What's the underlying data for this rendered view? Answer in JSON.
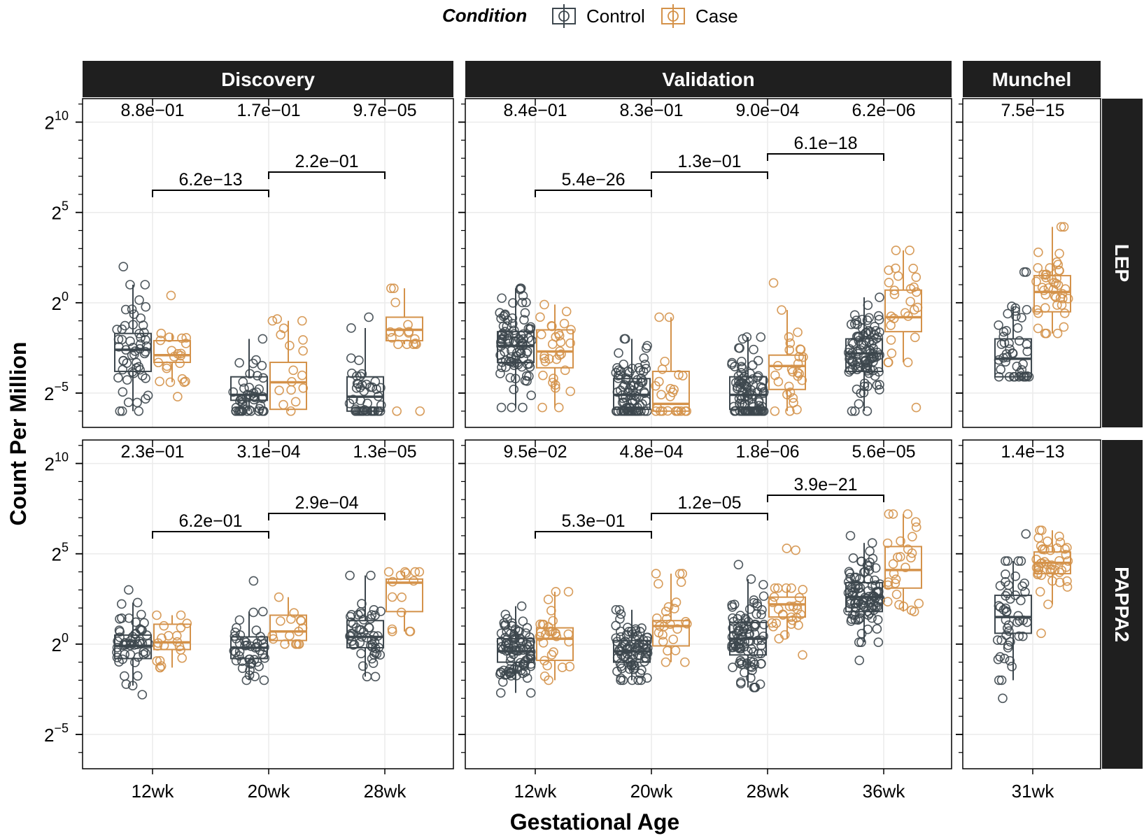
{
  "chart_data": {
    "type": "boxplot",
    "legend": {
      "title": "Condition",
      "position": "top",
      "entries": [
        {
          "name": "Control",
          "color": "#3d474e"
        },
        {
          "name": "Case",
          "color": "#d4924a"
        }
      ]
    },
    "xlabel": "Gestational Age",
    "ylabel": "Count Per Million",
    "y_scale": "log2",
    "y_range_log2": [
      -6.9,
      11.3
    ],
    "y_ticks": [
      {
        "exp": 0,
        "base": "2",
        "sup": "0"
      },
      {
        "exp": 5,
        "base": "2",
        "sup": "5"
      },
      {
        "exp": 10,
        "base": "2",
        "sup": "10"
      },
      {
        "exp": -5,
        "base": "2",
        "sup": "−5"
      }
    ],
    "column_facets": [
      {
        "name": "Discovery",
        "categories": [
          "12wk",
          "20wk",
          "28wk"
        ]
      },
      {
        "name": "Validation",
        "categories": [
          "12wk",
          "20wk",
          "28wk",
          "36wk"
        ]
      },
      {
        "name": "Munchel",
        "categories": [
          "31wk"
        ]
      }
    ],
    "row_facets": [
      "LEP",
      "PAPPA2"
    ],
    "panels": [
      {
        "row": "LEP",
        "col": "Discovery",
        "group_pvalues": [
          "8.8e−01",
          "1.7e−01",
          "9.7e−05"
        ],
        "comparisons": [
          {
            "from": 0,
            "to": 1,
            "label": "6.2e−13",
            "level": 0
          },
          {
            "from": 1,
            "to": 2,
            "label": "2.2e−01",
            "level": 1
          }
        ],
        "boxes": [
          {
            "x": "12wk",
            "group": "Control",
            "q1": -3.8,
            "median": -2.6,
            "q3": -1.7,
            "lo": -6.0,
            "hi": 1.0,
            "n": 48,
            "outliers": [
              -6.0,
              -6.0,
              1.0,
              2.0
            ]
          },
          {
            "x": "12wk",
            "group": "Case",
            "q1": -3.3,
            "median -2.9": -2.9,
            "median": -2.9,
            "q3": -2.1,
            "lo": -4.4,
            "hi": -1.7,
            "n": 18,
            "outliers": [
              0.4,
              -5.2
            ]
          },
          {
            "x": "20wk",
            "group": "Control",
            "q1": -5.4,
            "median": -5.1,
            "q3": -4.1,
            "lo": -6.0,
            "hi": -2.0,
            "n": 42,
            "outliers": [
              -6.0,
              -6.0,
              -6.0
            ]
          },
          {
            "x": "20wk",
            "group": "Case",
            "q1": -5.9,
            "median": -4.4,
            "q3": -3.3,
            "lo": -6.0,
            "hi": -1.0,
            "n": 14,
            "outliers": [
              -0.9
            ]
          },
          {
            "x": "28wk",
            "group": "Control",
            "q1": -6.0,
            "median": -5.2,
            "q3": -4.1,
            "lo": -6.0,
            "hi": -1.4,
            "n": 40,
            "outliers": [
              -6.0,
              -6.0,
              -0.8
            ]
          },
          {
            "x": "28wk",
            "group": "Case",
            "q1": -2.1,
            "median": -1.5,
            "q3": -0.8,
            "lo": -2.3,
            "hi": 0.8,
            "n": 12,
            "outliers": [
              -6.0,
              -6.0,
              0.8
            ]
          }
        ]
      },
      {
        "row": "LEP",
        "col": "Validation",
        "group_pvalues": [
          "8.4e−01",
          "8.3e−01",
          "9.0e−04",
          "6.2e−06"
        ],
        "comparisons": [
          {
            "from": 0,
            "to": 1,
            "label": "5.4e−26",
            "level": 0
          },
          {
            "from": 1,
            "to": 2,
            "label": "1.3e−01",
            "level": 1
          },
          {
            "from": 2,
            "to": 3,
            "label": "6.1e−18",
            "level": 2
          }
        ],
        "boxes": [
          {
            "x": "12wk",
            "group": "Control",
            "q1": -3.3,
            "median": -2.4,
            "q3": -1.6,
            "lo": -5.8,
            "hi": 0.8,
            "n": 90,
            "outliers": [
              -5.8,
              -5.8
            ]
          },
          {
            "x": "12wk",
            "group": "Case",
            "q1": -3.6,
            "median": -2.7,
            "q3": -1.5,
            "lo": -5.8,
            "hi": -0.1,
            "n": 28,
            "outliers": [
              -5.8
            ]
          },
          {
            "x": "20wk",
            "group": "Control",
            "q1": -5.9,
            "median": -5.1,
            "q3": -4.2,
            "lo": -6.0,
            "hi": -2.0,
            "n": 80,
            "outliers": [
              -6.0,
              -6.0,
              -6.0
            ]
          },
          {
            "x": "20wk",
            "group": "Case",
            "q1": -6.0,
            "median": -5.6,
            "q3": -3.8,
            "lo": -6.0,
            "hi": -0.8,
            "n": 22,
            "outliers": [
              -0.8
            ]
          },
          {
            "x": "28wk",
            "group": "Control",
            "q1": -5.9,
            "median": -5.1,
            "q3": -4.1,
            "lo": -6.0,
            "hi": -1.9,
            "n": 90,
            "outliers": [
              -6.0,
              -6.0,
              -6.0,
              -2.0
            ]
          },
          {
            "x": "28wk",
            "group": "Case",
            "q1": -4.8,
            "median": -3.5,
            "q3": -2.9,
            "lo": -6.0,
            "hi": -0.4,
            "n": 24,
            "outliers": [
              1.1,
              -6.0
            ]
          },
          {
            "x": "36wk",
            "group": "Control",
            "q1": -3.8,
            "median": -2.8,
            "q3": -2.0,
            "lo": -6.0,
            "hi": 0.3,
            "n": 95,
            "outliers": [
              -6.0,
              -6.0
            ]
          },
          {
            "x": "36wk",
            "group": "Case",
            "q1": -1.6,
            "median": -0.8,
            "q3": 0.7,
            "lo": -3.3,
            "hi": 2.9,
            "n": 24,
            "outliers": [
              -5.8,
              2.9
            ]
          }
        ]
      },
      {
        "row": "LEP",
        "col": "Munchel",
        "group_pvalues": [
          "7.5e−15"
        ],
        "comparisons": [],
        "boxes": [
          {
            "x": "31wk",
            "group": "Control",
            "q1": -4.1,
            "median": -3.1,
            "q3": -2.0,
            "lo": -4.1,
            "hi": -0.2,
            "n": 40,
            "outliers": [
              1.7,
              1.7
            ]
          },
          {
            "x": "31wk",
            "group": "Case",
            "q1": -0.5,
            "median": 0.6,
            "q3": 1.5,
            "lo": -1.7,
            "hi": 4.2,
            "n": 40,
            "outliers": [
              4.2
            ]
          }
        ]
      },
      {
        "row": "PAPPA2",
        "col": "Discovery",
        "group_pvalues": [
          "2.3e−01",
          "3.1e−04",
          "1.3e−05"
        ],
        "comparisons": [
          {
            "from": 0,
            "to": 1,
            "label": "6.2e−01",
            "level": 0
          },
          {
            "from": 1,
            "to": 2,
            "label": "2.9e−04",
            "level": 1
          }
        ],
        "boxes": [
          {
            "x": "12wk",
            "group": "Control",
            "q1": -0.8,
            "median": -0.1,
            "q3": 0.5,
            "lo": -2.3,
            "hi": 2.3,
            "n": 48,
            "outliers": [
              -2.8,
              3.0
            ]
          },
          {
            "x": "12wk",
            "group": "Case",
            "q1": -0.3,
            "median": 0.1,
            "q3": 1.1,
            "lo": -1.3,
            "hi": 1.6,
            "n": 18,
            "outliers": []
          },
          {
            "x": "20wk",
            "group": "Control",
            "q1": -0.8,
            "median": -0.2,
            "q3": 0.4,
            "lo": -2.0,
            "hi": 1.8,
            "n": 42,
            "outliers": [
              3.5
            ]
          },
          {
            "x": "20wk",
            "group": "Case",
            "q1": 0.2,
            "median": 0.7,
            "q3": 1.6,
            "lo": 0.0,
            "hi": 2.6,
            "n": 14,
            "outliers": []
          },
          {
            "x": "28wk",
            "group": "Control",
            "q1": -0.2,
            "median": 0.4,
            "q3": 1.3,
            "lo": -1.8,
            "hi": 3.8,
            "n": 48,
            "outliers": [
              3.8
            ]
          },
          {
            "x": "28wk",
            "group": "Case",
            "q1": 1.8,
            "median": 3.4,
            "q3": 3.6,
            "lo": 0.7,
            "hi": 4.0,
            "n": 12,
            "outliers": [
              0.7
            ]
          }
        ]
      },
      {
        "row": "PAPPA2",
        "col": "Validation",
        "group_pvalues": [
          "9.5e−02",
          "4.8e−04",
          "1.8e−06",
          "5.6e−05"
        ],
        "comparisons": [
          {
            "from": 0,
            "to": 1,
            "label": "5.3e−01",
            "level": 0
          },
          {
            "from": 1,
            "to": 2,
            "label": "1.2e−05",
            "level": 1
          },
          {
            "from": 2,
            "to": 3,
            "label": "3.9e−21",
            "level": 2
          }
        ],
        "boxes": [
          {
            "x": "12wk",
            "group": "Control",
            "q1": -1.0,
            "median": -0.4,
            "q3": 0.3,
            "lo": -2.7,
            "hi": 2.1,
            "n": 90,
            "outliers": [
              -2.7
            ]
          },
          {
            "x": "12wk",
            "group": "Case",
            "q1": -0.9,
            "median": 0.3,
            "q3": 0.9,
            "lo": -2.0,
            "hi": 2.9,
            "n": 26,
            "outliers": [
              2.9
            ]
          },
          {
            "x": "20wk",
            "group": "Control",
            "q1": -1.0,
            "median": -0.4,
            "q3": 0.2,
            "lo": -2.0,
            "hi": 1.9,
            "n": 80,
            "outliers": []
          },
          {
            "x": "20wk",
            "group": "Case",
            "q1": -0.1,
            "median": 1.0,
            "q3": 1.3,
            "lo": -1.0,
            "hi": 3.9,
            "n": 22,
            "outliers": [
              3.9
            ]
          },
          {
            "x": "28wk",
            "group": "Control",
            "q1": -0.6,
            "median": 0.3,
            "q3": 1.2,
            "lo": -2.4,
            "hi": 3.6,
            "n": 90,
            "outliers": [
              4.4
            ]
          },
          {
            "x": "28wk",
            "group": "Case",
            "q1": 1.5,
            "median": 2.2,
            "q3": 2.6,
            "lo": 0.3,
            "hi": 3.1,
            "n": 24,
            "outliers": [
              5.2,
              5.3,
              -0.6
            ]
          },
          {
            "x": "36wk",
            "group": "Control",
            "q1": 1.8,
            "median": 2.6,
            "q3": 3.4,
            "lo": 0.1,
            "hi": 5.6,
            "n": 95,
            "outliers": [
              -0.9,
              6.0
            ]
          },
          {
            "x": "36wk",
            "group": "Case",
            "q1": 3.1,
            "median": 4.1,
            "q3": 5.4,
            "lo": 1.8,
            "hi": 7.2,
            "n": 24,
            "outliers": [
              7.2
            ]
          }
        ]
      },
      {
        "row": "PAPPA2",
        "col": "Munchel",
        "group_pvalues": [
          "1.4e−13"
        ],
        "comparisons": [],
        "boxes": [
          {
            "x": "31wk",
            "group": "Control",
            "q1": 0.6,
            "median": 1.5,
            "q3": 2.7,
            "lo": -2.0,
            "hi": 4.6,
            "n": 45,
            "outliers": [
              -3.0,
              6.1
            ]
          },
          {
            "x": "31wk",
            "group": "Case",
            "q1": 3.9,
            "median": 4.5,
            "q3": 5.1,
            "lo": 2.2,
            "hi": 6.3,
            "n": 40,
            "outliers": [
              0.6
            ]
          }
        ]
      }
    ]
  }
}
